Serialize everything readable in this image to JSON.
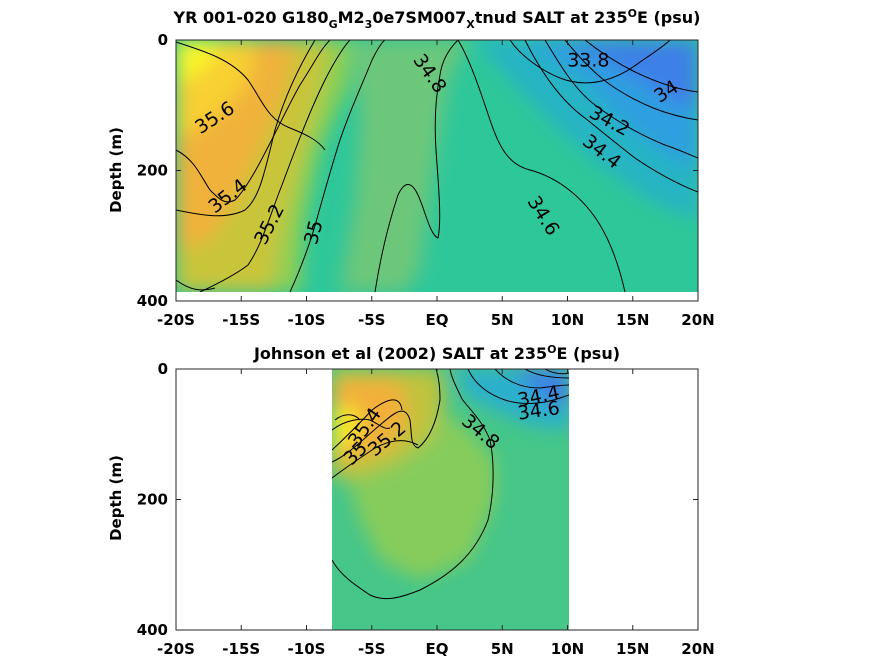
{
  "colors": {
    "yellow": "#f9f91c",
    "orange": "#f4ad3c",
    "green": "#7fcb5a",
    "teal": "#2ec79a",
    "cyan": "#1fb7c7",
    "blue": "#3d80e8",
    "line": "#000000"
  },
  "chart_data": [
    {
      "type": "contour",
      "title": {
        "pre": "YR 001-020 G180",
        "sub1": "G",
        "mid1": "M2",
        "sub2": "3",
        "mid2": "0e7SM007",
        "sub3": "X",
        "mid3": "tnud SALT at 235",
        "sup": "O",
        "post": "E (psu)"
      },
      "xlabel": "",
      "ylabel": "Depth (m)",
      "x_ticks": [
        "-20S",
        "-15S",
        "-10S",
        "-5S",
        "EQ",
        "5N",
        "10N",
        "15N",
        "20N"
      ],
      "x_tick_values": [
        -20,
        -15,
        -10,
        -5,
        0,
        5,
        10,
        15,
        20
      ],
      "y_ticks": [
        "0",
        "200",
        "400"
      ],
      "y_tick_values": [
        0,
        200,
        400
      ],
      "xlim": [
        -20,
        20
      ],
      "ylim": [
        400,
        0
      ],
      "data_extent": {
        "lat": [
          -20,
          20
        ],
        "depth": [
          0,
          385
        ]
      },
      "contour_labels": [
        {
          "text": "35.6",
          "lat": -17.0,
          "depth": 120,
          "angle": -33
        },
        {
          "text": "35.4",
          "lat": -16.0,
          "depth": 240,
          "angle": -38
        },
        {
          "text": "35.2",
          "lat": -12.8,
          "depth": 283,
          "angle": -63
        },
        {
          "text": "35",
          "lat": -9.4,
          "depth": 295,
          "angle": -75
        },
        {
          "text": "34.8",
          "lat": -0.6,
          "depth": 52,
          "angle": 55
        },
        {
          "text": "33.8",
          "lat": 11.6,
          "depth": 32,
          "angle": 0
        },
        {
          "text": "34",
          "lat": 17.6,
          "depth": 80,
          "angle": -33
        },
        {
          "text": "34.2",
          "lat": 13.2,
          "depth": 125,
          "angle": 28
        },
        {
          "text": "34.4",
          "lat": 12.6,
          "depth": 172,
          "angle": 38
        },
        {
          "text": "34.6",
          "lat": 8.1,
          "depth": 270,
          "angle": 58
        }
      ]
    },
    {
      "type": "contour",
      "title": {
        "pre": "Johnson et al (2002) SALT at 235",
        "sup": "O",
        "post": "E (psu)"
      },
      "xlabel": "",
      "ylabel": "Depth (m)",
      "x_ticks": [
        "-20S",
        "-15S",
        "-10S",
        "-5S",
        "EQ",
        "5N",
        "10N",
        "15N",
        "20N"
      ],
      "x_tick_values": [
        -20,
        -15,
        -10,
        -5,
        0,
        5,
        10,
        15,
        20
      ],
      "y_ticks": [
        "0",
        "200",
        "400"
      ],
      "y_tick_values": [
        0,
        200,
        400
      ],
      "xlim": [
        -20,
        20
      ],
      "ylim": [
        400,
        0
      ],
      "data_extent": {
        "lat": [
          -8,
          10
        ],
        "depth": [
          0,
          400
        ]
      },
      "contour_labels": [
        {
          "text": "35.4",
          "lat": -5.5,
          "depth": 90,
          "angle": -55
        },
        {
          "text": "35.2",
          "lat": -3.8,
          "depth": 108,
          "angle": -40
        },
        {
          "text": "35",
          "lat": -6.2,
          "depth": 130,
          "angle": -45
        },
        {
          "text": "34.8",
          "lat": 3.3,
          "depth": 97,
          "angle": 40
        },
        {
          "text": "34.4",
          "lat": 7.8,
          "depth": 43,
          "angle": -12
        },
        {
          "text": "34.6",
          "lat": 7.8,
          "depth": 65,
          "angle": -8
        }
      ]
    }
  ]
}
